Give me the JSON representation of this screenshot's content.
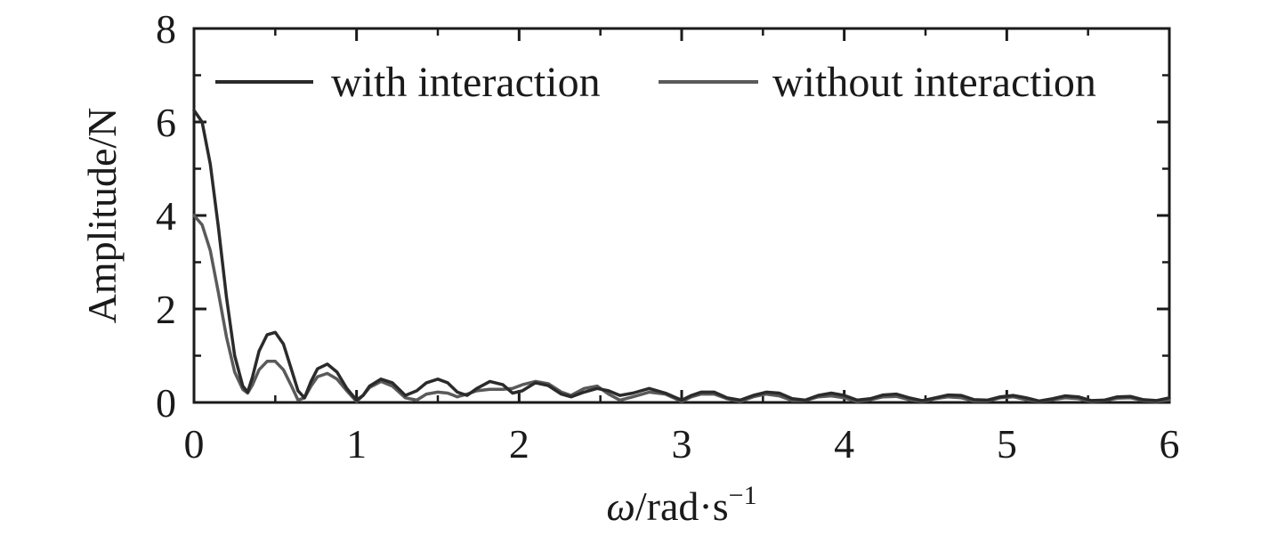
{
  "chart_data": {
    "type": "line",
    "xlabel": "ω/rad·s",
    "xlabel_superscript": "−1",
    "ylabel": "Amplitude/N",
    "xlim": [
      0,
      6
    ],
    "ylim": [
      0,
      8
    ],
    "xticks": [
      "0",
      "1",
      "2",
      "3",
      "4",
      "5",
      "6"
    ],
    "yticks": [
      "0",
      "2",
      "4",
      "6",
      "8"
    ],
    "grid": false,
    "legend_position": "top",
    "series": [
      {
        "name": "with interaction",
        "color": "#2b2b2b",
        "x": [
          0.0,
          0.05,
          0.1,
          0.15,
          0.2,
          0.25,
          0.3,
          0.33,
          0.36,
          0.4,
          0.45,
          0.5,
          0.55,
          0.6,
          0.64,
          0.68,
          0.72,
          0.76,
          0.82,
          0.88,
          0.94,
          1.0,
          1.04,
          1.08,
          1.15,
          1.22,
          1.3,
          1.37,
          1.43,
          1.5,
          1.56,
          1.62,
          1.68,
          1.74,
          1.82,
          1.9,
          1.96,
          2.02,
          2.1,
          2.18,
          2.26,
          2.32,
          2.4,
          2.48,
          2.55,
          2.62,
          2.7,
          2.8,
          2.9,
          3.0,
          3.06,
          3.12,
          3.2,
          3.28,
          3.36,
          3.44,
          3.52,
          3.6,
          3.68,
          3.76,
          3.84,
          3.92,
          4.0,
          4.08,
          4.16,
          4.24,
          4.32,
          4.4,
          4.48,
          4.56,
          4.64,
          4.72,
          4.8,
          4.88,
          4.96,
          5.04,
          5.12,
          5.2,
          5.28,
          5.36,
          5.44,
          5.52,
          5.6,
          5.68,
          5.76,
          5.84,
          5.92,
          6.0
        ],
        "y": [
          6.25,
          6.0,
          5.1,
          3.75,
          2.25,
          1.0,
          0.35,
          0.22,
          0.55,
          1.1,
          1.45,
          1.5,
          1.25,
          0.7,
          0.25,
          0.1,
          0.45,
          0.72,
          0.82,
          0.65,
          0.3,
          0.05,
          0.15,
          0.35,
          0.5,
          0.42,
          0.15,
          0.25,
          0.42,
          0.5,
          0.42,
          0.22,
          0.15,
          0.3,
          0.45,
          0.38,
          0.2,
          0.25,
          0.42,
          0.36,
          0.18,
          0.12,
          0.22,
          0.3,
          0.25,
          0.15,
          0.2,
          0.3,
          0.2,
          0.05,
          0.15,
          0.22,
          0.22,
          0.1,
          0.05,
          0.15,
          0.22,
          0.2,
          0.08,
          0.05,
          0.15,
          0.2,
          0.15,
          0.05,
          0.08,
          0.16,
          0.18,
          0.1,
          0.04,
          0.1,
          0.16,
          0.15,
          0.06,
          0.05,
          0.12,
          0.15,
          0.1,
          0.03,
          0.08,
          0.14,
          0.12,
          0.04,
          0.05,
          0.12,
          0.13,
          0.06,
          0.04,
          0.1
        ]
      },
      {
        "name": "without interaction",
        "color": "#5a5a5a",
        "x": [
          0.0,
          0.05,
          0.1,
          0.15,
          0.2,
          0.25,
          0.3,
          0.33,
          0.36,
          0.4,
          0.45,
          0.5,
          0.55,
          0.6,
          0.64,
          0.68,
          0.72,
          0.76,
          0.82,
          0.88,
          0.94,
          1.0,
          1.04,
          1.08,
          1.15,
          1.22,
          1.3,
          1.37,
          1.43,
          1.5,
          1.56,
          1.62,
          1.68,
          1.74,
          1.82,
          1.9,
          1.96,
          2.02,
          2.1,
          2.18,
          2.26,
          2.32,
          2.4,
          2.48,
          2.55,
          2.62,
          2.7,
          2.8,
          2.9,
          3.0,
          3.06,
          3.12,
          3.2,
          3.28,
          3.36,
          3.44,
          3.52,
          3.6,
          3.68,
          3.76,
          3.84,
          3.92,
          4.0,
          4.08,
          4.16,
          4.24,
          4.32,
          4.4,
          4.48,
          4.56,
          4.64,
          4.72,
          4.8,
          4.88,
          4.96,
          5.04,
          5.12,
          5.2,
          5.28,
          5.36,
          5.44,
          5.52,
          5.6,
          5.68,
          5.76,
          5.84,
          5.92,
          6.0
        ],
        "y": [
          4.0,
          3.8,
          3.25,
          2.35,
          1.4,
          0.65,
          0.28,
          0.2,
          0.38,
          0.7,
          0.88,
          0.88,
          0.7,
          0.35,
          0.05,
          0.1,
          0.35,
          0.55,
          0.62,
          0.5,
          0.25,
          0.02,
          0.15,
          0.32,
          0.45,
          0.35,
          0.1,
          0.05,
          0.18,
          0.22,
          0.2,
          0.12,
          0.18,
          0.25,
          0.28,
          0.28,
          0.3,
          0.38,
          0.45,
          0.4,
          0.22,
          0.15,
          0.3,
          0.35,
          0.18,
          0.05,
          0.12,
          0.22,
          0.18,
          0.02,
          0.12,
          0.18,
          0.18,
          0.08,
          0.02,
          0.12,
          0.18,
          0.14,
          0.04,
          0.04,
          0.12,
          0.14,
          0.1,
          0.02,
          0.06,
          0.12,
          0.13,
          0.06,
          0.02,
          0.08,
          0.12,
          0.1,
          0.03,
          0.03,
          0.1,
          0.12,
          0.06,
          0.02,
          0.06,
          0.1,
          0.08,
          0.02,
          0.04,
          0.09,
          0.1,
          0.04,
          0.02,
          0.06
        ]
      }
    ]
  }
}
